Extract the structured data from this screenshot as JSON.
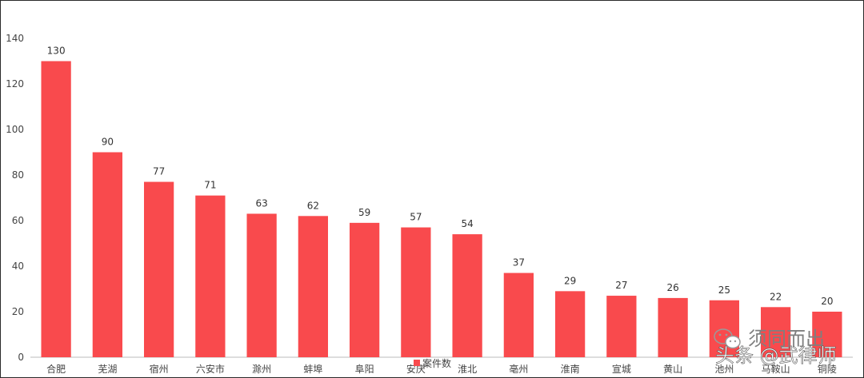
{
  "chart_data": {
    "type": "bar",
    "categories": [
      "合肥",
      "芜湖",
      "宿州",
      "六安市",
      "滁州",
      "蚌埠",
      "阜阳",
      "安庆",
      "淮北",
      "亳州",
      "淮南",
      "宣城",
      "黄山",
      "池州",
      "马鞍山",
      "铜陵"
    ],
    "series": [
      {
        "name": "案件数",
        "values": [
          130,
          90,
          77,
          71,
          63,
          62,
          59,
          57,
          54,
          37,
          29,
          27,
          26,
          25,
          22,
          20
        ]
      }
    ],
    "yticks": [
      0,
      20,
      40,
      60,
      80,
      100,
      120,
      140
    ],
    "ylim": [
      0,
      140
    ],
    "title": "",
    "xlabel": "",
    "ylabel": "",
    "grid": false,
    "legend": "bottom-center",
    "bar_color": "#f94a4d"
  },
  "watermark": {
    "line1": "须同而出",
    "line2": "头条 @武律师"
  }
}
